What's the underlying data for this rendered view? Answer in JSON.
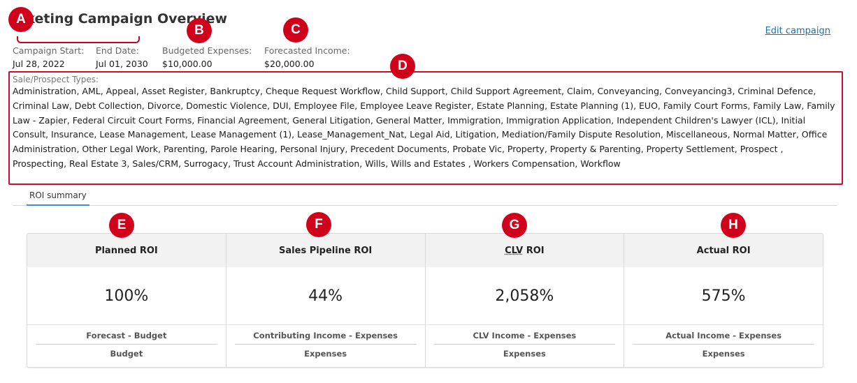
{
  "page": {
    "title": "rketing Campaign Overview",
    "edit_link": "Edit campaign"
  },
  "campaign": {
    "start_label": "Campaign Start:",
    "start_value": "Jul 28, 2022",
    "end_label": "End Date:",
    "end_value": "Jul 01, 2030",
    "budget_label": "Budgeted Expenses:",
    "budget_value": "$10,000.00",
    "income_label": "Forecasted Income:",
    "income_value": "$20,000.00"
  },
  "types": {
    "label": "Sale/Prospect Types:",
    "text": "Administration, AML, Appeal, Asset Register, Bankruptcy, Cheque Request Workflow, Child Support, Child Support Agreement, Claim, Conveyancing, Conveyancing3, Criminal Defence, Criminal Law, Debt Collection, Divorce, Domestic Violence, DUI, Employee File, Employee Leave Register, Estate Planning, Estate Planning (1), EUO, Family Court Forms, Family Law, Family Law - Zapier, Federal Circuit Court Forms, Financial Agreement, General Litigation, General Matter, Immigration, Immigration Application, Independent Children's Lawyer (ICL), Initial Consult, Insurance, Lease Management, Lease Management (1), Lease_Management_Nat, Legal Aid, Litigation, Mediation/Family Dispute Resolution, Miscellaneous, Normal Matter, Office Administration, Other Legal Work, Parenting, Parole Hearing, Personal Injury, Precedent Documents, Probate Vic, Property, Property & Parenting, Property Settlement, Prospect , Prospecting, Real Estate 3, Sales/CRM, Surrogacy, Trust Account Administration, Wills, Wills and Estates , Workers Compensation, Workflow"
  },
  "tabs": [
    {
      "label": "ROI summary"
    }
  ],
  "badges": [
    "A",
    "B",
    "C",
    "D",
    "E",
    "F",
    "G",
    "H"
  ],
  "roi": [
    {
      "title": "Planned ROI",
      "value": "100%",
      "numerator": "Forecast - Budget",
      "denominator": "Budget"
    },
    {
      "title": "Sales Pipeline ROI",
      "value": "44%",
      "numerator": "Contributing Income - Expenses",
      "denominator": "Expenses"
    },
    {
      "title_abbr": "CLV",
      "title_rest": " ROI",
      "value": "2,058%",
      "numerator": "CLV Income - Expenses",
      "denominator": "Expenses"
    },
    {
      "title": "Actual ROI",
      "value": "575%",
      "numerator": "Actual Income - Expenses",
      "denominator": "Expenses"
    }
  ],
  "colors": {
    "badge": "#d0021b",
    "link": "#1a6fb5",
    "tab_underline": "#3b8fd6"
  }
}
